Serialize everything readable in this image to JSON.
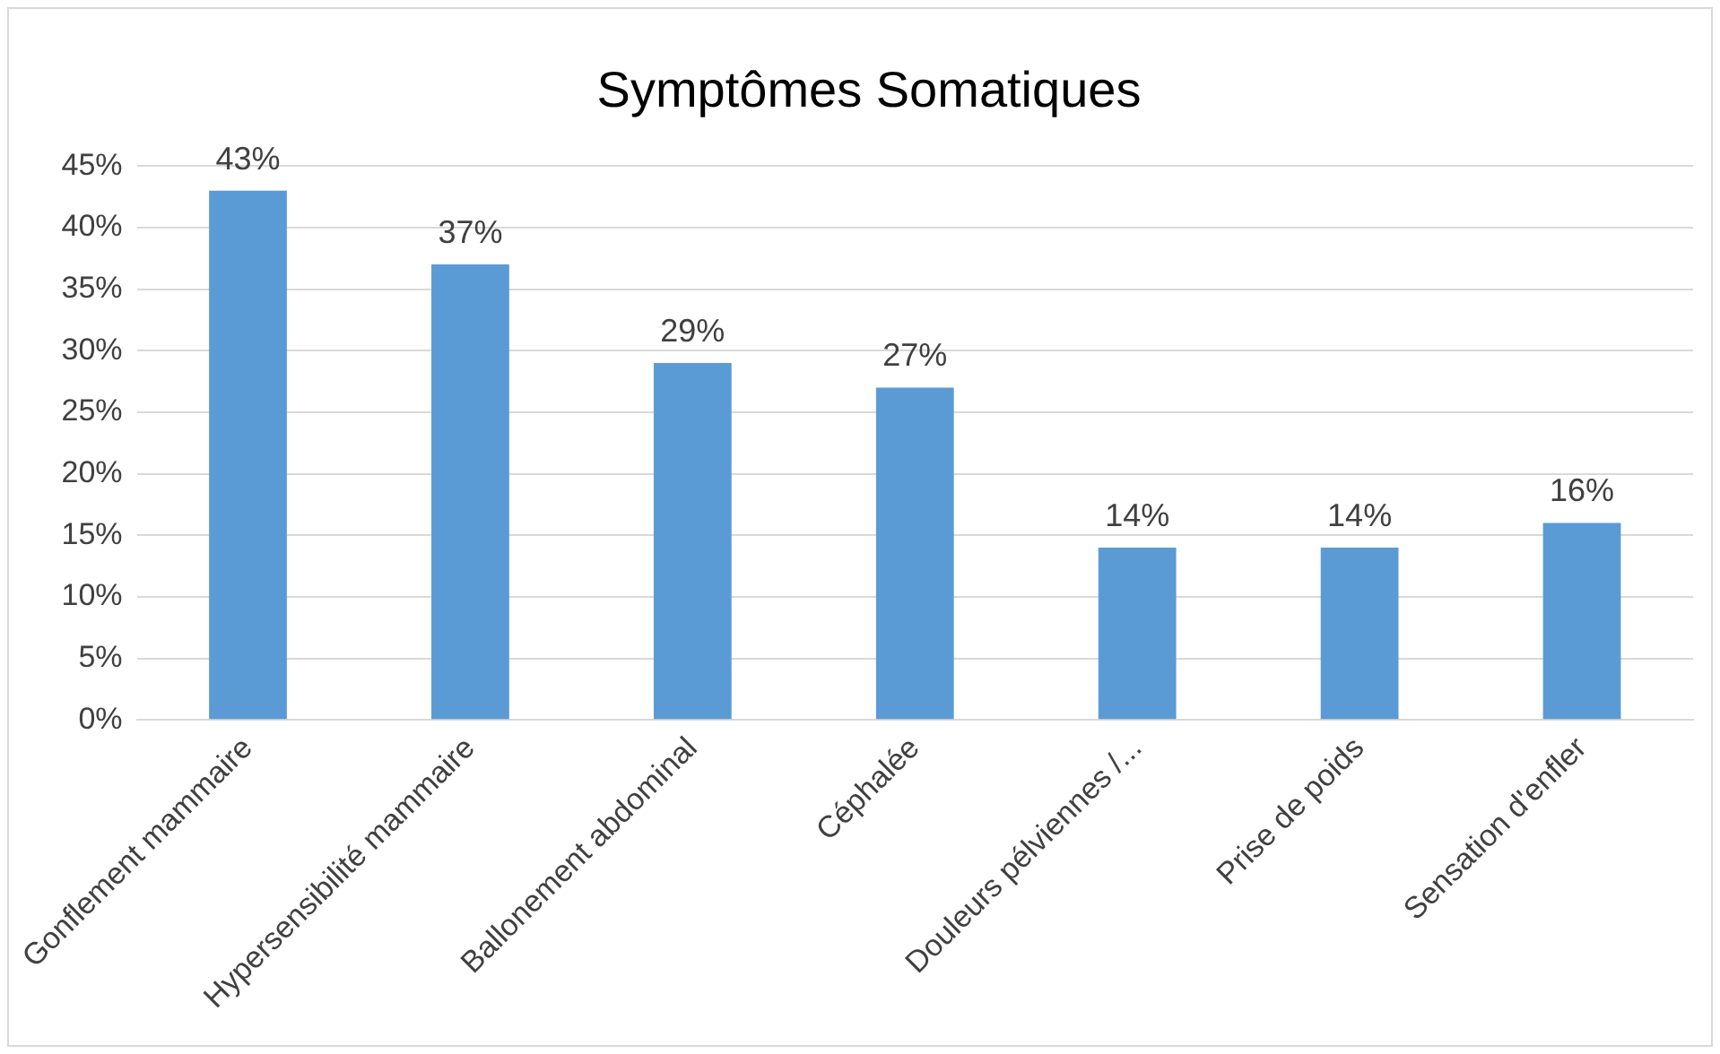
{
  "chart_data": {
    "type": "bar",
    "title": "Symptômes Somatiques",
    "categories": [
      "Gonflement mammaire",
      "Hypersensibilité mammaire",
      "Ballonement abdominal",
      "Céphalée",
      "Douleurs pélviennes /...",
      "Prise de poids",
      "Sensation d'enfler"
    ],
    "values": [
      43,
      37,
      29,
      27,
      14,
      14,
      16
    ],
    "value_labels": [
      "43%",
      "37%",
      "29%",
      "27%",
      "14%",
      "14%",
      "16%"
    ],
    "color": "#5b9bd5",
    "ylim": [
      0,
      45
    ],
    "yticks": [
      {
        "value": 0,
        "label": "0%"
      },
      {
        "value": 5,
        "label": "5%"
      },
      {
        "value": 10,
        "label": "10%"
      },
      {
        "value": 15,
        "label": "15%"
      },
      {
        "value": 20,
        "label": "20%"
      },
      {
        "value": 25,
        "label": "25%"
      },
      {
        "value": 30,
        "label": "30%"
      },
      {
        "value": 35,
        "label": "35%"
      },
      {
        "value": 40,
        "label": "40%"
      },
      {
        "value": 45,
        "label": "45%"
      }
    ],
    "grid": "y"
  }
}
